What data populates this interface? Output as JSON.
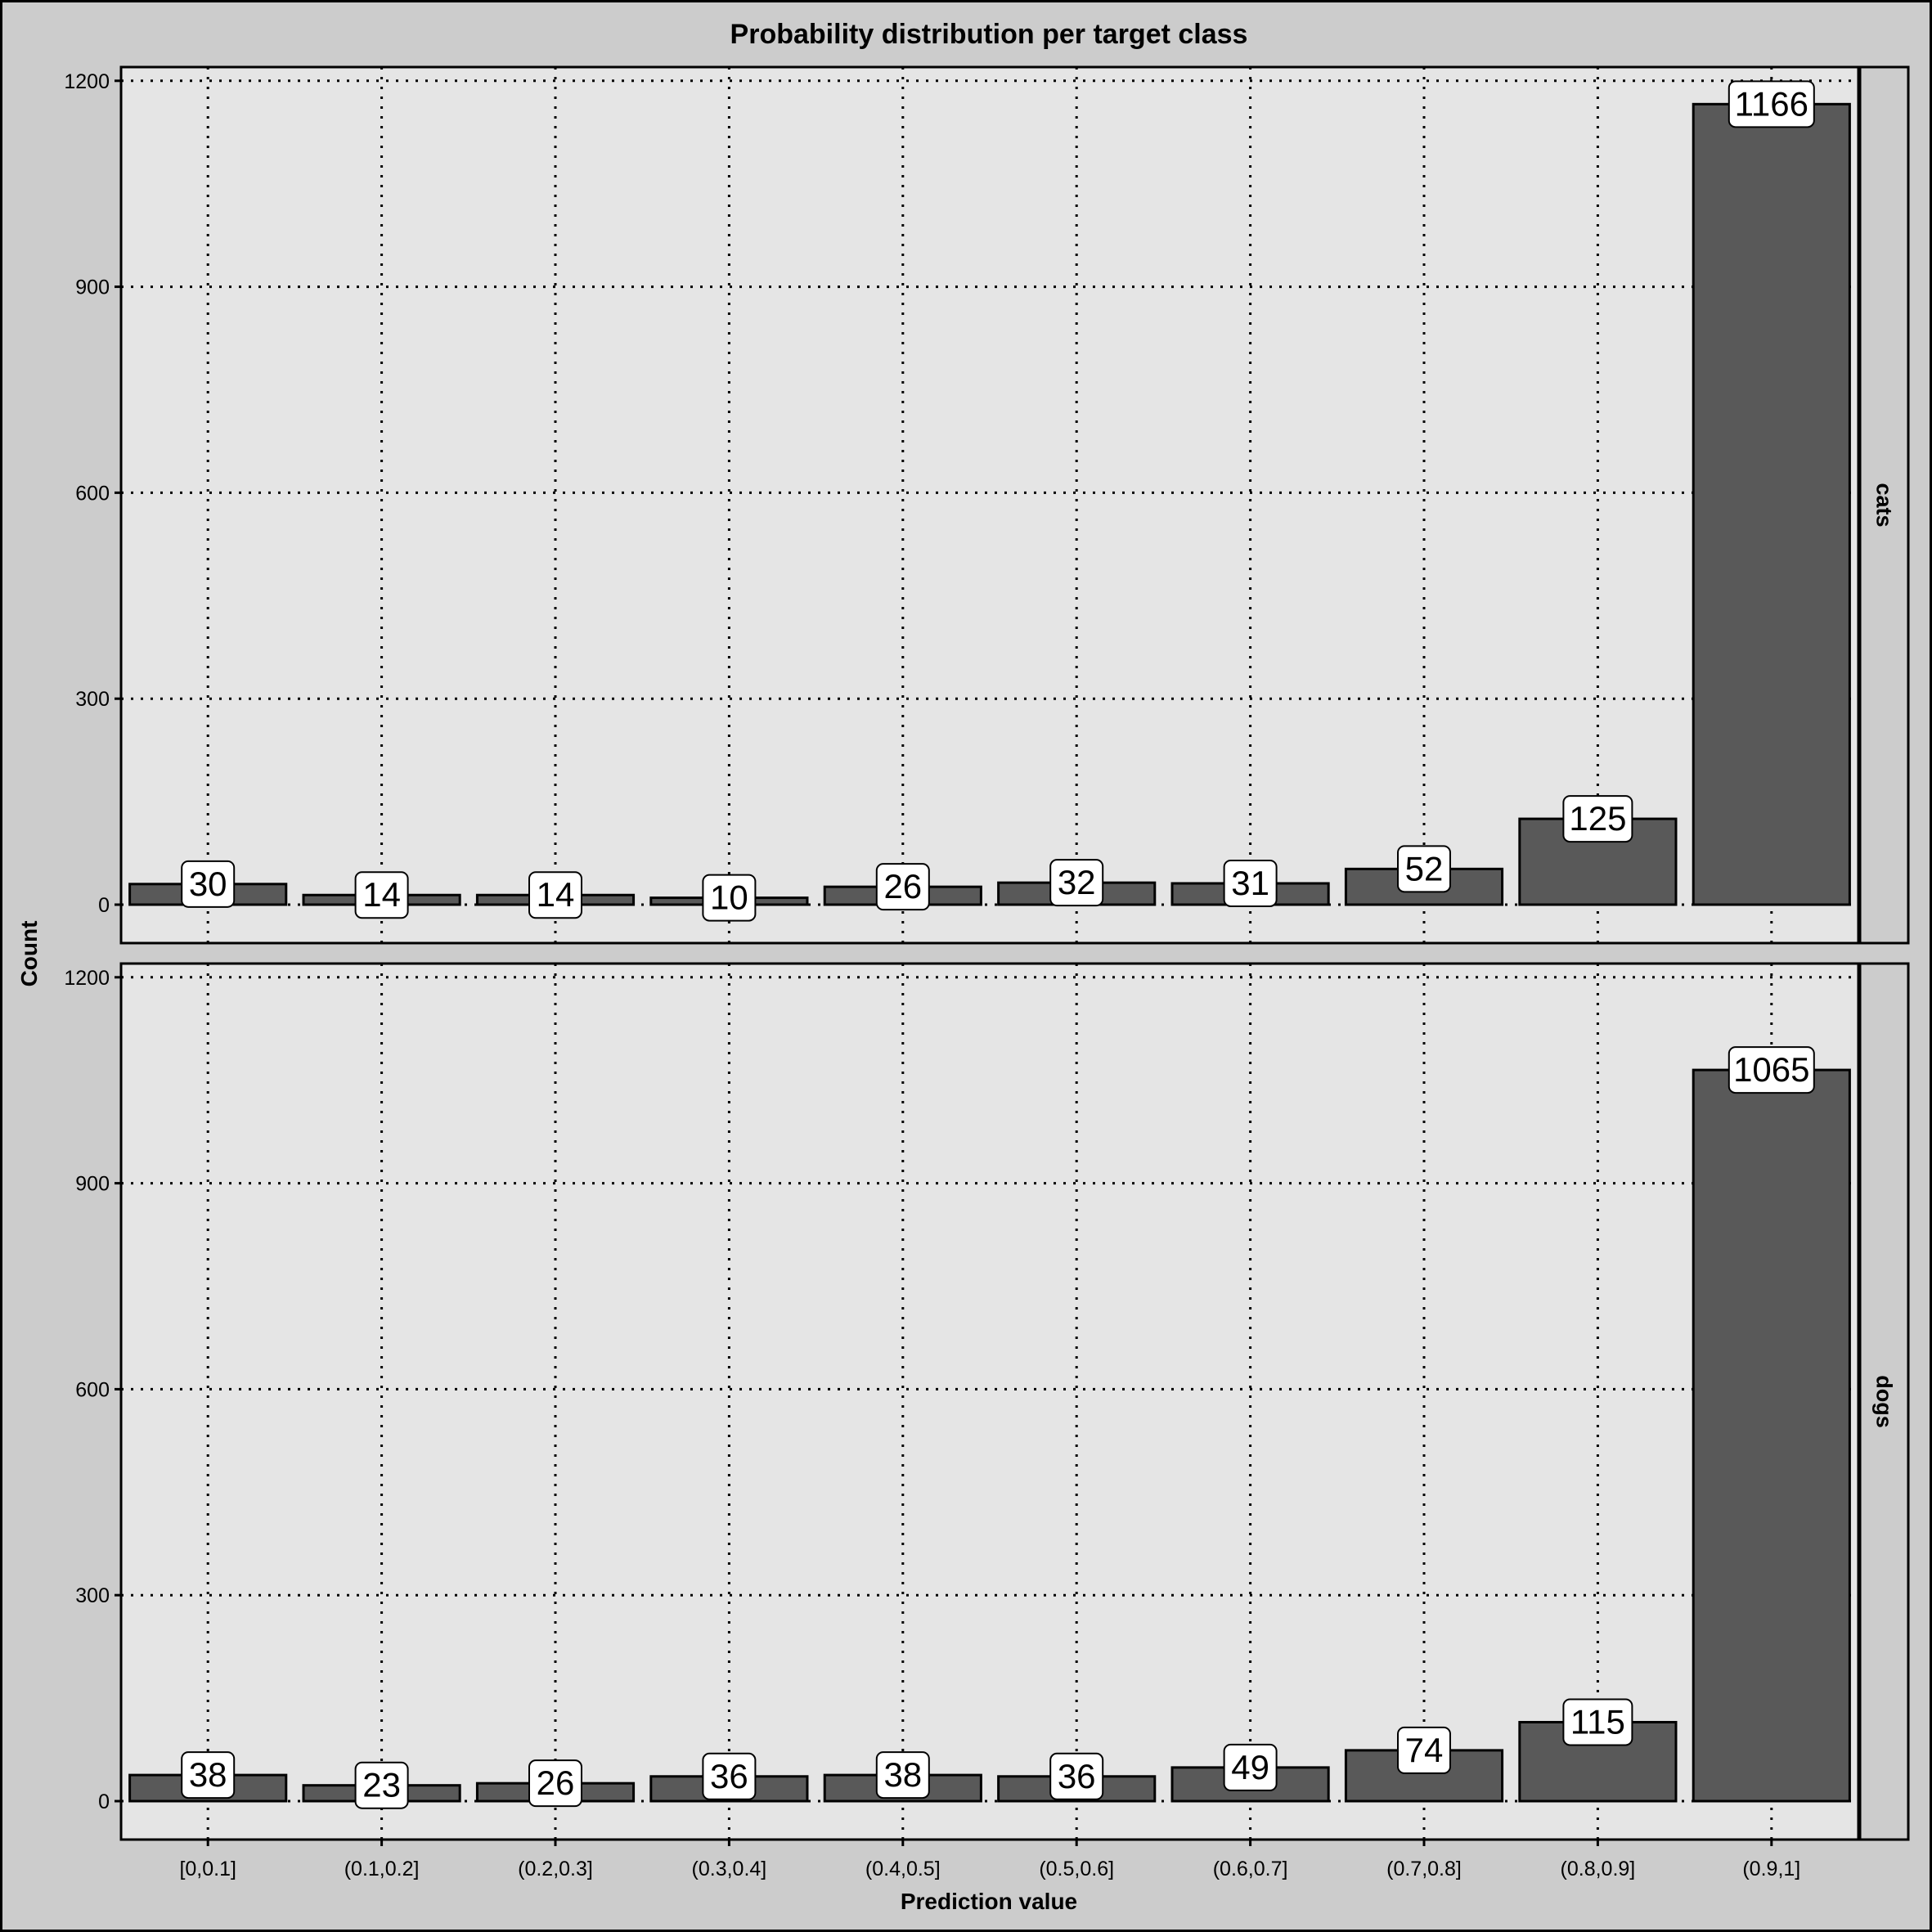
{
  "chart_data": {
    "type": "bar",
    "title": "Probability distribution per target class",
    "xlabel": "Prediction value",
    "ylabel": "Count",
    "categories": [
      "[0,0.1]",
      "(0.1,0.2]",
      "(0.2,0.3]",
      "(0.3,0.4]",
      "(0.4,0.5]",
      "(0.5,0.6]",
      "(0.6,0.7]",
      "(0.7,0.8]",
      "(0.8,0.9]",
      "(0.9,1]"
    ],
    "yticks": [
      0,
      300,
      600,
      900,
      1200
    ],
    "ylim": [
      -56,
      1220
    ],
    "grid": true,
    "grid_style": "dotted",
    "facet_orientation": "rows",
    "facet_strip_side": "right",
    "series": [
      {
        "name": "cats",
        "values": [
          30,
          14,
          14,
          10,
          26,
          32,
          31,
          52,
          125,
          1166
        ]
      },
      {
        "name": "dogs",
        "values": [
          38,
          23,
          26,
          36,
          38,
          36,
          49,
          74,
          115,
          1065
        ]
      }
    ],
    "colors": {
      "background": "#cccccc",
      "panel": "#e5e5e5",
      "bar_fill": "#595959",
      "bar_outline": "#000000",
      "grid": "#000000",
      "label_box": "#ffffff",
      "strip": "#cccccc",
      "text": "#000000"
    }
  }
}
